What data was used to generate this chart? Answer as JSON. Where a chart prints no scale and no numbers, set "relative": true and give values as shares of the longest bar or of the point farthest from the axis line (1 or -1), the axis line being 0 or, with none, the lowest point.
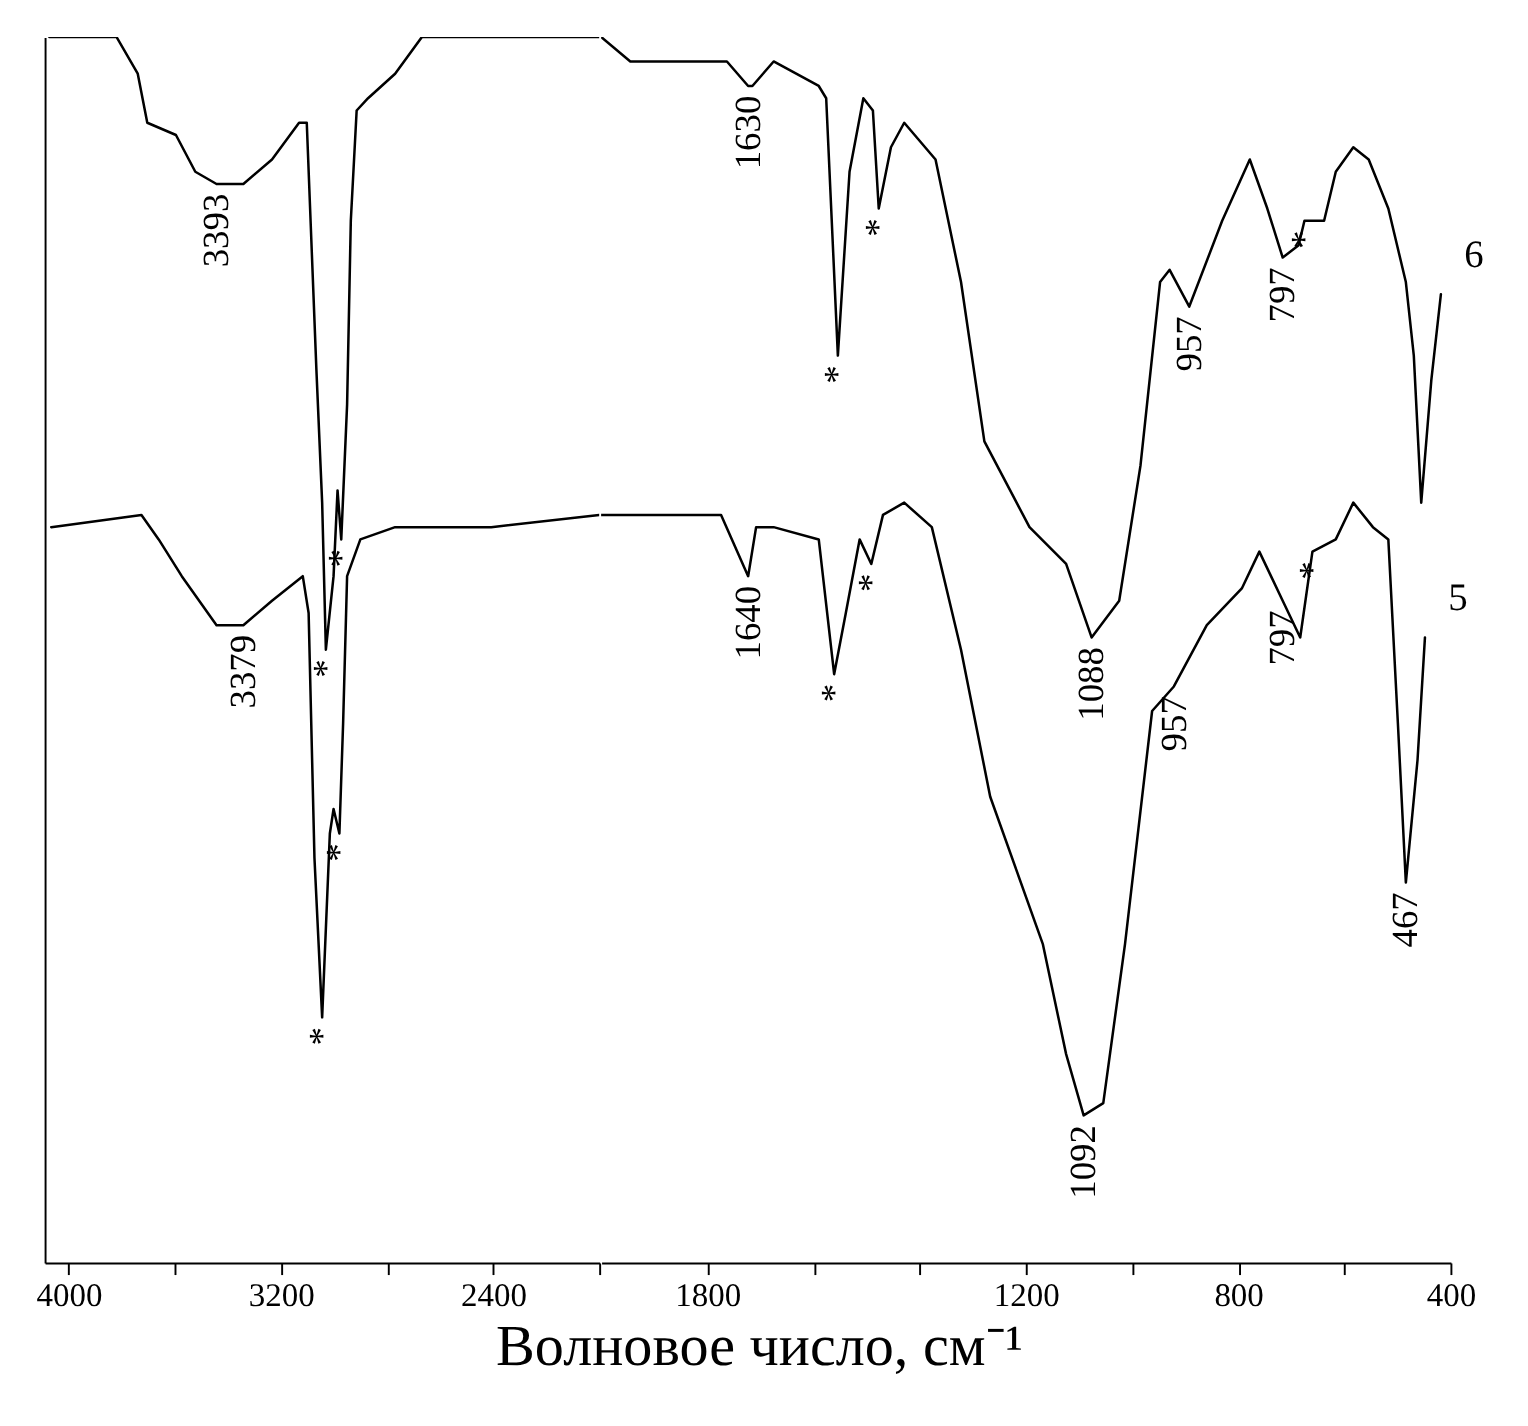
{
  "chart_data": [
    {
      "type": "line",
      "relative": true,
      "xlim": [
        4090,
        2000
      ],
      "xticks": [
        4000,
        {
          "value": 3600,
          "label": null
        },
        3200,
        {
          "value": 2800,
          "label": null
        },
        2400,
        {
          "value": 2000,
          "label": null
        }
      ],
      "grid": false,
      "series": [
        {
          "color": "#000000",
          "x": [
            4072,
            3884,
            3819,
            3739,
            3703,
            3595,
            3522,
            3442,
            3341,
            3233,
            3131,
            3102,
            3066,
            3044,
            3030,
            3001,
            2986,
            2972,
            2950,
            2936,
            2914,
            2871,
            2769,
            2668,
            2407,
            2147,
            2000
          ],
          "values": [
            1,
            1,
            1,
            0.97,
            0.93,
            0.92,
            0.89,
            0.88,
            0.88,
            0.9,
            0.93,
            0.93,
            0.73,
            0.62,
            0.5,
            0.56,
            0.63,
            0.59,
            0.7,
            0.85,
            0.94,
            0.95,
            0.97,
            1,
            1,
            1,
            1
          ]
        },
        {
          "color": "#000000",
          "x": [
            4065,
            3725,
            3660,
            3573,
            3442,
            3341,
            3233,
            3117,
            3095,
            3073,
            3044,
            3015,
            3001,
            2979,
            2965,
            2950,
            2900,
            2769,
            2603,
            2559,
            2407,
            2000
          ],
          "values": [
            0.6,
            0.61,
            0.59,
            0.56,
            0.52,
            0.52,
            0.54,
            0.56,
            0.53,
            0.33,
            0.2,
            0.35,
            0.37,
            0.35,
            0.44,
            0.56,
            0.59,
            0.6,
            0.6,
            0.6,
            0.6,
            0.61
          ]
        }
      ],
      "annotations": [
        {
          "text": "3393",
          "x": 3442,
          "y": 0.88
        },
        {
          "text": "3379",
          "x": 3341,
          "y": 0.52
        },
        {
          "text": "*",
          "x": 3030,
          "y": 0.5
        },
        {
          "text": "*",
          "x": 2972,
          "y": 0.59
        },
        {
          "text": "*",
          "x": 3044,
          "y": 0.2
        },
        {
          "text": "*",
          "x": 2979,
          "y": 0.35
        }
      ]
    },
    {
      "type": "line",
      "relative": true,
      "xlabel": "Волновое число, см⁻¹",
      "xlim": [
        2000,
        400
      ],
      "xticks": [
        1800,
        {
          "value": 1600,
          "label": null
        },
        {
          "value": 1400,
          "label": null
        },
        1200,
        {
          "value": 1000,
          "label": null
        },
        800,
        {
          "value": 600,
          "label": null
        },
        400
      ],
      "grid": false,
      "series": [
        {
          "name": "6",
          "color": "#000000",
          "x": [
            2000,
            1945,
            1815,
            1763,
            1723,
            1715,
            1675,
            1590,
            1576,
            1554,
            1532,
            1506,
            1488,
            1477,
            1454,
            1429,
            1370,
            1322,
            1278,
            1193,
            1124,
            1076,
            1024,
            984,
            947,
            929,
            892,
            830,
            778,
            745,
            716,
            686,
            675,
            660,
            638,
            616,
            583,
            554,
            517,
            484,
            469,
            455,
            436,
            418
          ],
          "values": [
            1,
            0.98,
            0.98,
            0.98,
            0.96,
            0.96,
            0.98,
            0.96,
            0.95,
            0.74,
            0.89,
            0.95,
            0.94,
            0.86,
            0.91,
            0.93,
            0.9,
            0.8,
            0.67,
            0.6,
            0.57,
            0.51,
            0.54,
            0.65,
            0.8,
            0.81,
            0.78,
            0.85,
            0.9,
            0.86,
            0.82,
            0.83,
            0.85,
            0.85,
            0.85,
            0.89,
            0.91,
            0.9,
            0.86,
            0.8,
            0.74,
            0.62,
            0.72,
            0.79
          ]
        },
        {
          "name": "5",
          "color": "#000000",
          "x": [
            2000,
            1815,
            1774,
            1723,
            1708,
            1675,
            1590,
            1561,
            1539,
            1513,
            1491,
            1469,
            1429,
            1377,
            1322,
            1267,
            1168,
            1124,
            1091,
            1054,
            1013,
            962,
            921,
            859,
            793,
            760,
            716,
            683,
            660,
            616,
            583,
            546,
            517,
            499,
            484,
            462,
            448
          ],
          "values": [
            0.61,
            0.61,
            0.61,
            0.56,
            0.6,
            0.6,
            0.59,
            0.48,
            0.53,
            0.59,
            0.57,
            0.61,
            0.62,
            0.6,
            0.5,
            0.38,
            0.26,
            0.17,
            0.12,
            0.13,
            0.26,
            0.45,
            0.47,
            0.52,
            0.55,
            0.58,
            0.54,
            0.51,
            0.58,
            0.59,
            0.62,
            0.6,
            0.59,
            0.44,
            0.31,
            0.41,
            0.51
          ]
        }
      ],
      "annotations": [
        {
          "text": "1630",
          "x": 1723,
          "y": 0.96
        },
        {
          "text": "1088",
          "x": 1076,
          "y": 0.51
        },
        {
          "text": "957",
          "x": 892,
          "y": 0.78
        },
        {
          "text": "797",
          "x": 716,
          "y": 0.82
        },
        {
          "text": "1640",
          "x": 1723,
          "y": 0.56
        },
        {
          "text": "1092",
          "x": 1091,
          "y": 0.12
        },
        {
          "text": "957",
          "x": 921,
          "y": 0.47
        },
        {
          "text": "797",
          "x": 716,
          "y": 0.54
        },
        {
          "text": "467",
          "x": 484,
          "y": 0.31
        },
        {
          "text": "*",
          "x": 1554,
          "y": 0.74
        },
        {
          "text": "*",
          "x": 1477,
          "y": 0.86
        },
        {
          "text": "*",
          "x": 675,
          "y": 0.85
        },
        {
          "text": "*",
          "x": 1561,
          "y": 0.48
        },
        {
          "text": "*",
          "x": 1491,
          "y": 0.57
        },
        {
          "text": "*",
          "x": 660,
          "y": 0.58
        }
      ]
    }
  ]
}
